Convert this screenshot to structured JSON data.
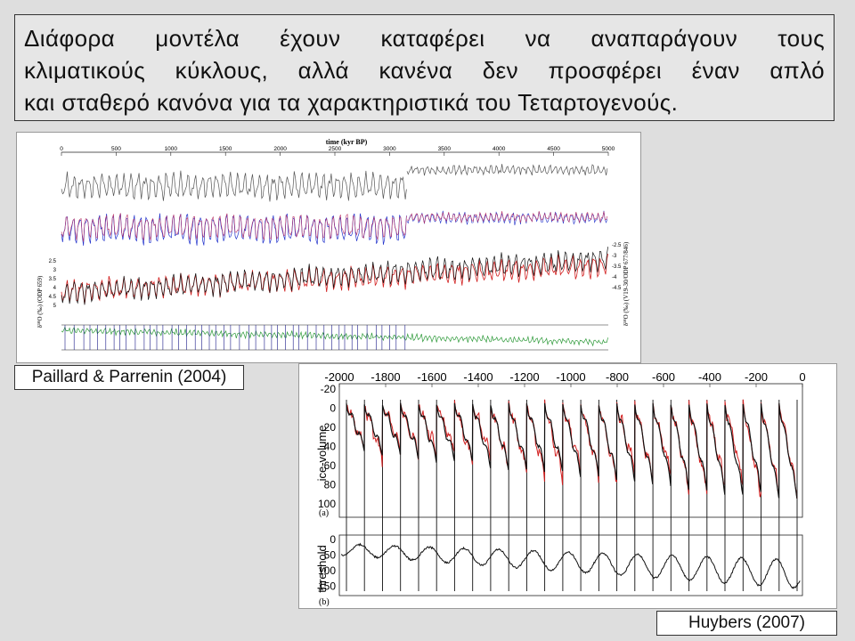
{
  "title": {
    "lines": [
      "Διάφορα μοντέλα έχουν καταφέρει να αναπαράγουν τους",
      "κλιματικούς κύκλους, αλλά κανένα δεν προσφέρει έναν απλό",
      "και σταθερό κανόνα για  τα χαρακτηριστικά του Τεταρτογενούς."
    ]
  },
  "figure1": {
    "caption": "Paillard & Parrenin (2004)",
    "top_axis_label": "time (kyr BP)",
    "top_ticks": [
      "0",
      "500",
      "1000",
      "1500",
      "2000",
      "2500",
      "3000",
      "3500",
      "4000",
      "4500",
      "5000"
    ],
    "left_ticks": [
      "2.5",
      "3",
      "3.5",
      "4",
      "4.5",
      "5"
    ],
    "right_ticks": [
      "-2.5",
      "-3",
      "-3.5",
      "-4",
      "-4.5"
    ],
    "left_axis_label": "δ¹⁸O (‰) (ODP 659)",
    "right_axis_label": "δ¹⁸O (‰) (V19-30/ODP 677/846)",
    "series_colors": {
      "gray": "#555555",
      "blue": "#2233cc",
      "purple": "#bb3366",
      "red": "#d21f1f",
      "black": "#111111",
      "green": "#2e9a3a",
      "navy": "#1a1a88"
    }
  },
  "figure2": {
    "caption": "Huybers (2007)",
    "top_ticks": [
      "-2000",
      "-1800",
      "-1600",
      "-1400",
      "-1200",
      "-1000",
      "-800",
      "-600",
      "-400",
      "-200",
      "0"
    ],
    "panel_a": {
      "label": "(a)",
      "ylabel": "ice-volume",
      "yticks": [
        "-20",
        "0",
        "20",
        "40",
        "60",
        "80",
        "100"
      ]
    },
    "panel_b": {
      "label": "(b)",
      "ylabel": "threshold",
      "yticks": [
        "0",
        "50",
        "100",
        "150"
      ]
    },
    "series_colors": {
      "model": "#111111",
      "data": "#d21f1f"
    }
  }
}
